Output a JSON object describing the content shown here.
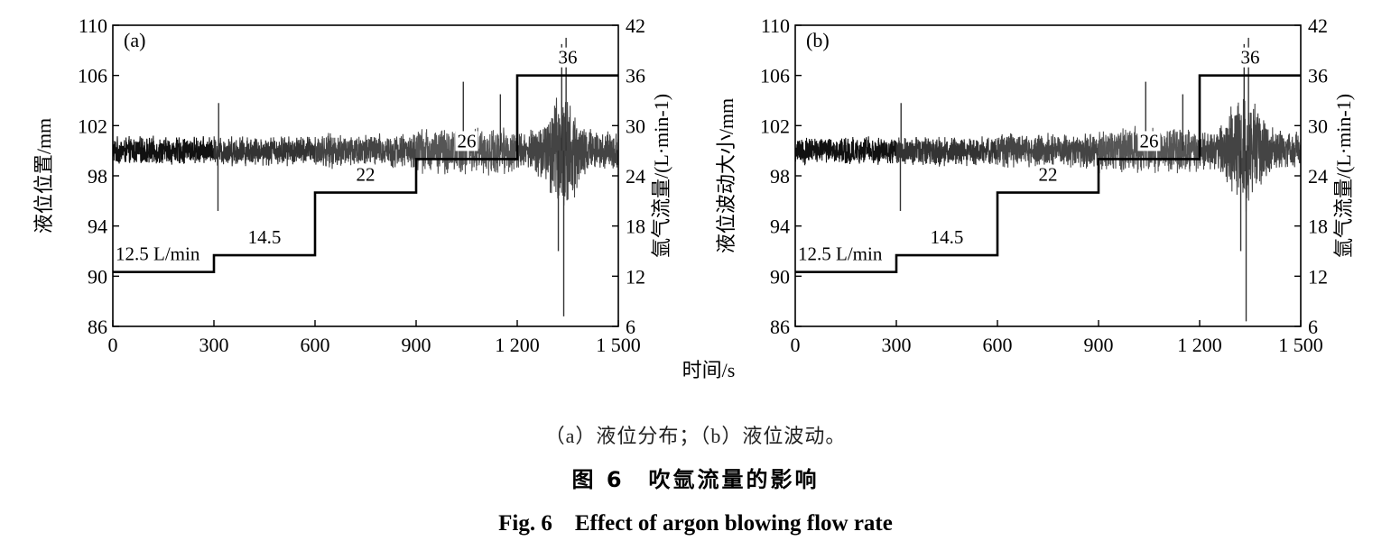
{
  "chart_data": [
    {
      "type": "line",
      "panel_label": "(a)",
      "ylabel_left": "液位位置/mm",
      "ylabel_right": "氩气流量/(L·min-1)",
      "xlabel": "时间/s",
      "xlim": [
        0,
        1500
      ],
      "ylim_left": [
        86,
        110
      ],
      "ylim_right": [
        6,
        42
      ],
      "xticks": [
        0,
        300,
        600,
        900,
        1200,
        1500
      ],
      "xtick_labels": [
        "0",
        "300",
        "600",
        "900",
        "1 200",
        "1 500"
      ],
      "yticks_left": [
        86,
        90,
        94,
        98,
        102,
        106,
        110
      ],
      "yticks_right": [
        6,
        12,
        18,
        24,
        30,
        36,
        42
      ],
      "series": [
        {
          "name": "液位位置",
          "axis": "left",
          "segments": [
            {
              "t": [
                0,
                300
              ],
              "mean": 100.0,
              "amp": 1.2,
              "shade": "#111111"
            },
            {
              "t": [
                300,
                600
              ],
              "mean": 100.0,
              "amp": 1.3,
              "shade": "#333333"
            },
            {
              "t": [
                600,
                900
              ],
              "mean": 100.0,
              "amp": 1.5,
              "shade": "#444444"
            },
            {
              "t": [
                900,
                1200
              ],
              "mean": 100.0,
              "amp": 2.0,
              "shade": "#555555"
            },
            {
              "t": [
                1200,
                1500
              ],
              "mean": 100.0,
              "amp": 2.6,
              "shade": "#444444"
            }
          ],
          "extremes": [
            {
              "t": 312,
              "v": 95.2
            },
            {
              "t": 314,
              "v": 103.8
            },
            {
              "t": 1040,
              "v": 105.5
            },
            {
              "t": 1150,
              "v": 104.5
            },
            {
              "t": 1332,
              "v": 108.5
            },
            {
              "t": 1345,
              "v": 109.0
            },
            {
              "t": 1338,
              "v": 86.8
            },
            {
              "t": 1322,
              "v": 92.0
            }
          ]
        },
        {
          "name": "氩气流量",
          "axis": "right",
          "steps": [
            {
              "t": [
                0,
                300
              ],
              "value": 12.5,
              "label": "12.5 L/min"
            },
            {
              "t": [
                300,
                600
              ],
              "value": 14.5,
              "label": "14.5"
            },
            {
              "t": [
                600,
                900
              ],
              "value": 22,
              "label": "22"
            },
            {
              "t": [
                900,
                1200
              ],
              "value": 26,
              "label": "26"
            },
            {
              "t": [
                1200,
                1500
              ],
              "value": 36,
              "label": "36"
            }
          ]
        }
      ]
    },
    {
      "type": "line",
      "panel_label": "(b)",
      "ylabel_left": "液位波动大小/mm",
      "ylabel_right": "氩气流量/(L·min-1)",
      "xlabel": "时间/s",
      "xlim": [
        0,
        1500
      ],
      "ylim_left": [
        86,
        110
      ],
      "ylim_right": [
        6,
        42
      ],
      "xticks": [
        0,
        300,
        600,
        900,
        1200,
        1500
      ],
      "xtick_labels": [
        "0",
        "300",
        "600",
        "900",
        "1 200",
        "1 500"
      ],
      "yticks_left": [
        86,
        90,
        94,
        98,
        102,
        106,
        110
      ],
      "yticks_right": [
        6,
        12,
        18,
        24,
        30,
        36,
        42
      ],
      "series": [
        {
          "name": "液位波动大小",
          "axis": "left",
          "segments": [
            {
              "t": [
                0,
                300
              ],
              "mean": 100.0,
              "amp": 1.2,
              "shade": "#111111"
            },
            {
              "t": [
                300,
                600
              ],
              "mean": 100.0,
              "amp": 1.3,
              "shade": "#333333"
            },
            {
              "t": [
                600,
                900
              ],
              "mean": 100.0,
              "amp": 1.5,
              "shade": "#444444"
            },
            {
              "t": [
                900,
                1200
              ],
              "mean": 100.0,
              "amp": 2.0,
              "shade": "#555555"
            },
            {
              "t": [
                1200,
                1500
              ],
              "mean": 100.0,
              "amp": 2.6,
              "shade": "#444444"
            }
          ],
          "extremes": [
            {
              "t": 312,
              "v": 95.2
            },
            {
              "t": 314,
              "v": 103.8
            },
            {
              "t": 1040,
              "v": 105.5
            },
            {
              "t": 1150,
              "v": 104.5
            },
            {
              "t": 1332,
              "v": 108.5
            },
            {
              "t": 1345,
              "v": 109.0
            },
            {
              "t": 1338,
              "v": 86.4
            },
            {
              "t": 1322,
              "v": 92.0
            }
          ]
        },
        {
          "name": "氩气流量",
          "axis": "right",
          "steps": [
            {
              "t": [
                0,
                300
              ],
              "value": 12.5,
              "label": "12.5 L/min"
            },
            {
              "t": [
                300,
                600
              ],
              "value": 14.5,
              "label": "14.5"
            },
            {
              "t": [
                600,
                900
              ],
              "value": 22,
              "label": "22"
            },
            {
              "t": [
                900,
                1200
              ],
              "value": 26,
              "label": "26"
            },
            {
              "t": [
                1200,
                1500
              ],
              "value": 36,
              "label": "36"
            }
          ]
        }
      ]
    }
  ],
  "captions": {
    "sub": "（a）液位分布；（b）液位波动。",
    "title_cn": "图 6　吹氩流量的影响",
    "title_en": "Fig. 6　Effect of argon blowing flow rate"
  }
}
